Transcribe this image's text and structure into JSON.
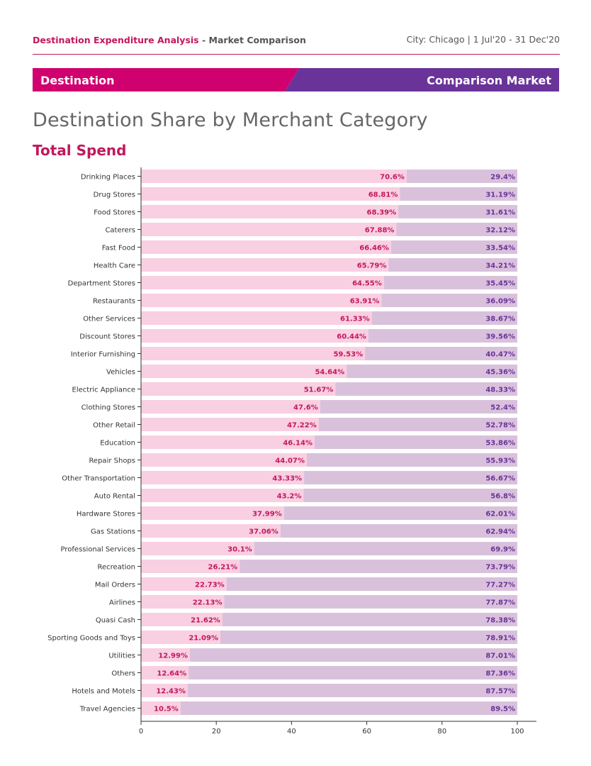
{
  "header": {
    "title_main": "Destination Expenditure Analysis",
    "title_sep": " - ",
    "title_sub": "Market Comparison",
    "context": "City: Chicago  |  1 Jul'20 - 31 Dec'20"
  },
  "banner": {
    "left_label": "Destination",
    "right_label": "Comparison Market",
    "left_color": "#d0006f",
    "right_color": "#6a3399"
  },
  "page_title": "Destination Share by Merchant Category",
  "subtitle": "Total Spend",
  "chart_data": {
    "type": "bar",
    "orientation": "horizontal",
    "stacked": true,
    "categories": [
      "Drinking Places",
      "Drug Stores",
      "Food Stores",
      "Caterers",
      "Fast Food",
      "Health Care",
      "Department Stores",
      "Restaurants",
      "Other Services",
      "Discount Stores",
      "Interior Furnishing",
      "Vehicles",
      "Electric Appliance",
      "Clothing Stores",
      "Other Retail",
      "Education",
      "Repair Shops",
      "Other Transportation",
      "Auto Rental",
      "Hardware Stores",
      "Gas Stations",
      "Professional Services",
      "Recreation",
      "Mail Orders",
      "Airlines",
      "Quasi Cash",
      "Sporting Goods and Toys",
      "Utilities",
      "Others",
      "Hotels and Motels",
      "Travel Agencies"
    ],
    "series": [
      {
        "values": [
          70.6,
          68.81,
          68.39,
          67.88,
          66.46,
          65.79,
          64.55,
          63.91,
          61.33,
          60.44,
          59.53,
          54.64,
          51.67,
          47.6,
          47.22,
          46.14,
          44.07,
          43.33,
          43.2,
          37.99,
          37.06,
          30.1,
          26.21,
          22.73,
          22.13,
          21.62,
          21.09,
          12.99,
          12.64,
          12.43,
          10.5
        ],
        "color": "#f9cfe2",
        "label_color": "#c2185b"
      },
      {
        "values": [
          29.4,
          31.19,
          31.61,
          32.12,
          33.54,
          34.21,
          35.45,
          36.09,
          38.67,
          39.56,
          40.47,
          45.36,
          48.33,
          52.4,
          52.78,
          53.86,
          55.93,
          56.67,
          56.8,
          62.01,
          62.94,
          69.9,
          73.79,
          77.27,
          77.87,
          78.38,
          78.91,
          87.01,
          87.36,
          87.57,
          89.5
        ],
        "color": "#d9c1dc",
        "label_color": "#6a3399"
      }
    ],
    "data_labels": [
      [
        "70.6%",
        "68.81%",
        "68.39%",
        "67.88%",
        "66.46%",
        "65.79%",
        "64.55%",
        "63.91%",
        "61.33%",
        "60.44%",
        "59.53%",
        "54.64%",
        "51.67%",
        "47.6%",
        "47.22%",
        "46.14%",
        "44.07%",
        "43.33%",
        "43.2%",
        "37.99%",
        "37.06%",
        "30.1%",
        "26.21%",
        "22.73%",
        "22.13%",
        "21.62%",
        "21.09%",
        "12.99%",
        "12.64%",
        "12.43%",
        "10.5%"
      ],
      [
        "29.4%",
        "31.19%",
        "31.61%",
        "32.12%",
        "33.54%",
        "34.21%",
        "35.45%",
        "36.09%",
        "38.67%",
        "39.56%",
        "40.47%",
        "45.36%",
        "48.33%",
        "52.4%",
        "52.78%",
        "53.86%",
        "55.93%",
        "56.67%",
        "56.8%",
        "62.01%",
        "62.94%",
        "69.9%",
        "73.79%",
        "77.27%",
        "77.87%",
        "78.38%",
        "78.91%",
        "87.01%",
        "87.36%",
        "87.57%",
        "89.5%"
      ]
    ],
    "xlim": [
      0,
      100
    ],
    "xticks": [
      "0",
      "20",
      "40",
      "60",
      "80",
      "100"
    ],
    "grid": false,
    "legend": "none"
  }
}
